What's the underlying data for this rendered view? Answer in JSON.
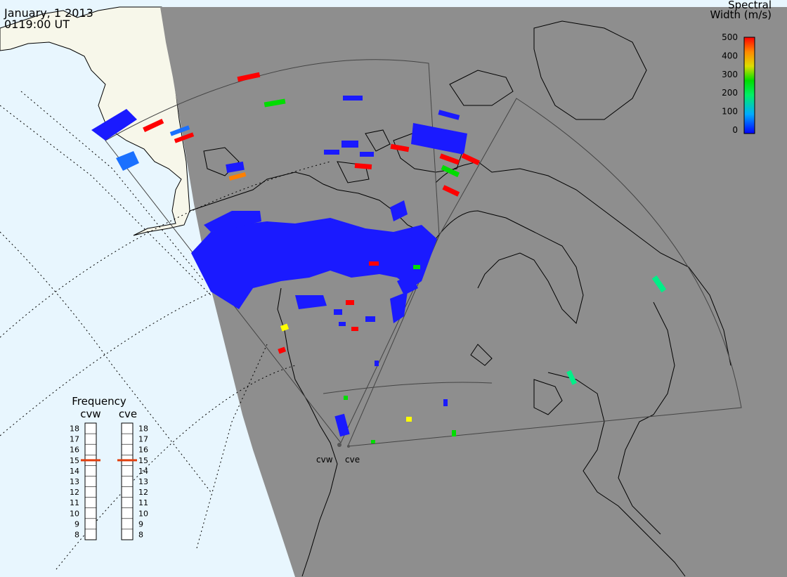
{
  "header": {
    "date": "January, 1 2013",
    "time": "0119:00 UT"
  },
  "colorbar": {
    "title_line1": "Spectral",
    "title_line2": "Width (m/s)",
    "ticks": [
      "500",
      "400",
      "300",
      "200",
      "100",
      "0"
    ]
  },
  "frequency": {
    "title": "Frequency",
    "radars": [
      {
        "name": "cvw",
        "selected": "15"
      },
      {
        "name": "cve",
        "selected": "15"
      }
    ],
    "scale": [
      "18",
      "17",
      "16",
      "15",
      "14",
      "13",
      "12",
      "11",
      "10",
      "9",
      "8"
    ]
  },
  "stations": {
    "west": "cvw",
    "east": "cve"
  },
  "colors": {
    "ocean": "#e8f6fe",
    "dark_side": "#8e8e8e",
    "land_light": "#f7f7ea",
    "low": "#1a1aff",
    "mid": "#00dd00",
    "high": "#ff0000"
  }
}
